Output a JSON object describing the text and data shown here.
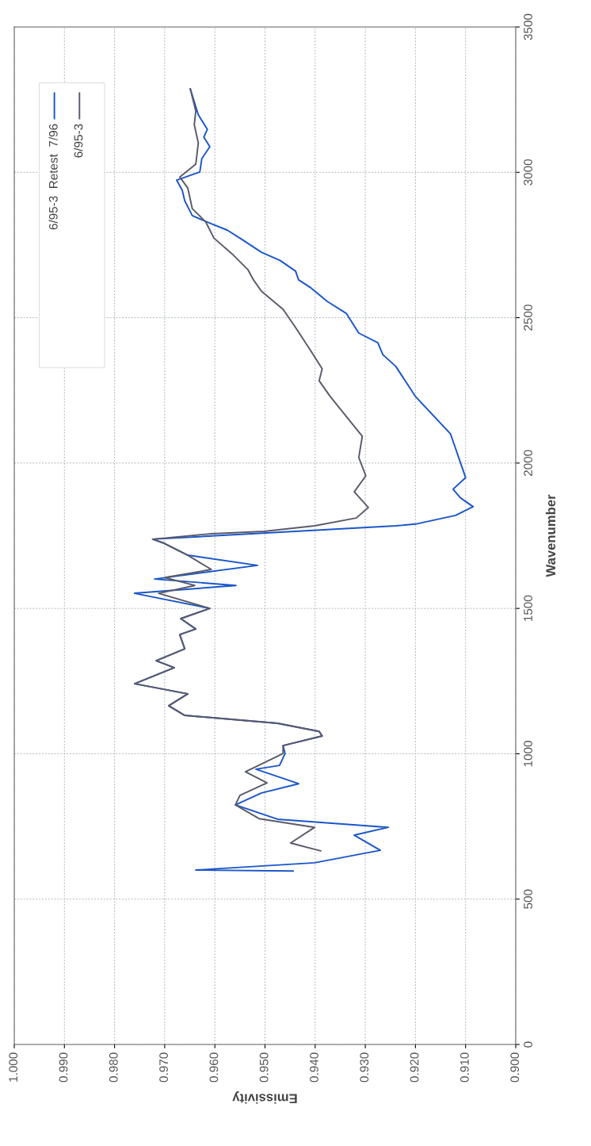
{
  "chart_data": {
    "type": "line",
    "xlabel": "Emissivity",
    "ylabel": "Wavenumber",
    "ylim": [
      0,
      3500
    ],
    "yticks": [
      0,
      500,
      1000,
      1500,
      2000,
      2500,
      3000,
      3500
    ],
    "xlim": [
      1.0,
      0.9
    ],
    "xticks": [
      {
        "value": 1.0,
        "label": "1.000"
      },
      {
        "value": 0.99,
        "label": "0.990"
      },
      {
        "value": 0.98,
        "label": "0.980"
      },
      {
        "value": 0.97,
        "label": "0.970"
      },
      {
        "value": 0.96,
        "label": "0.960"
      },
      {
        "value": 0.95,
        "label": "0.950"
      },
      {
        "value": 0.94,
        "label": "0.940"
      },
      {
        "value": 0.93,
        "label": "0.930"
      },
      {
        "value": 0.92,
        "label": "0.920"
      },
      {
        "value": 0.91,
        "label": "0.910"
      },
      {
        "value": 0.9,
        "label": "0.900"
      }
    ],
    "grid": true,
    "legend": "top left",
    "marker": "none",
    "line_style": "solid",
    "series": [
      {
        "name": "6/95-3  Retest  7/96",
        "color": "#1a56c8",
        "values": [
          597,
          600,
          625,
          668,
          720,
          747,
          775,
          824,
          865,
          897,
          947,
          960,
          1001,
          1028,
          1061,
          1077,
          1105,
          1132,
          1165,
          1206,
          1241,
          1296,
          1320,
          1361,
          1410,
          1429,
          1465,
          1500,
          1552,
          1579,
          1601,
          1648,
          1683,
          1724,
          1738,
          1784,
          1790,
          1820,
          1850,
          1880,
          1910,
          1950,
          2000,
          2050,
          2100,
          2229,
          2332,
          2373,
          2414,
          2447,
          2515,
          2556,
          2602,
          2630,
          2660,
          2697,
          2725,
          2766,
          2801,
          2823,
          2851,
          2902,
          2938,
          2973,
          3001,
          3047,
          3088,
          3121,
          3148,
          3198,
          3287
        ],
        "x": [
          0.9444,
          0.9638,
          0.9401,
          0.927,
          0.9322,
          0.9254,
          0.9475,
          0.9559,
          0.9507,
          0.9433,
          0.9518,
          0.9471,
          0.946,
          0.9464,
          0.9386,
          0.9392,
          0.9475,
          0.966,
          0.9692,
          0.9654,
          0.976,
          0.9681,
          0.9717,
          0.966,
          0.967,
          0.9638,
          0.9668,
          0.961,
          0.976,
          0.9558,
          0.972,
          0.9515,
          0.9654,
          0.9701,
          0.9724,
          0.9239,
          0.92,
          0.912,
          0.9085,
          0.911,
          0.9125,
          0.91,
          0.911,
          0.912,
          0.913,
          0.92,
          0.9239,
          0.9265,
          0.9275,
          0.9313,
          0.9338,
          0.9376,
          0.9408,
          0.9433,
          0.9439,
          0.947,
          0.9507,
          0.9543,
          0.9575,
          0.9607,
          0.9645,
          0.966,
          0.9665,
          0.9676,
          0.963,
          0.9626,
          0.961,
          0.9622,
          0.9615,
          0.9633,
          0.9649
        ]
      },
      {
        "name": "6/95-3",
        "color": "#5a5a6a",
        "values": [
          666,
          693,
          747,
          777,
          824,
          857,
          900,
          938,
          1001,
          1028,
          1061,
          1077,
          1105,
          1132,
          1165,
          1206,
          1241,
          1296,
          1320,
          1361,
          1410,
          1429,
          1465,
          1500,
          1552,
          1579,
          1606,
          1634,
          1683,
          1724,
          1738,
          1757,
          1765,
          1784,
          1811,
          1847,
          1901,
          1956,
          2019,
          2092,
          2229,
          2283,
          2324,
          2384,
          2466,
          2529,
          2591,
          2630,
          2665,
          2720,
          2774,
          2829,
          2875,
          2946,
          2984,
          3028,
          3101,
          3164,
          3211,
          3287
        ],
        "x": [
          0.9389,
          0.9449,
          0.9401,
          0.9512,
          0.9559,
          0.955,
          0.9496,
          0.9539,
          0.9464,
          0.9464,
          0.9386,
          0.9392,
          0.9475,
          0.966,
          0.9692,
          0.9654,
          0.976,
          0.9681,
          0.9717,
          0.966,
          0.967,
          0.9638,
          0.9668,
          0.961,
          0.9712,
          0.964,
          0.97,
          0.9607,
          0.9654,
          0.9701,
          0.9724,
          0.9607,
          0.9502,
          0.9401,
          0.9318,
          0.9294,
          0.9322,
          0.9299,
          0.9313,
          0.9306,
          0.937,
          0.9392,
          0.9386,
          0.9408,
          0.9439,
          0.9464,
          0.9507,
          0.9523,
          0.9534,
          0.9566,
          0.9602,
          0.9618,
          0.9645,
          0.9654,
          0.967,
          0.9638,
          0.9633,
          0.9641,
          0.9638,
          0.9649
        ]
      }
    ]
  }
}
